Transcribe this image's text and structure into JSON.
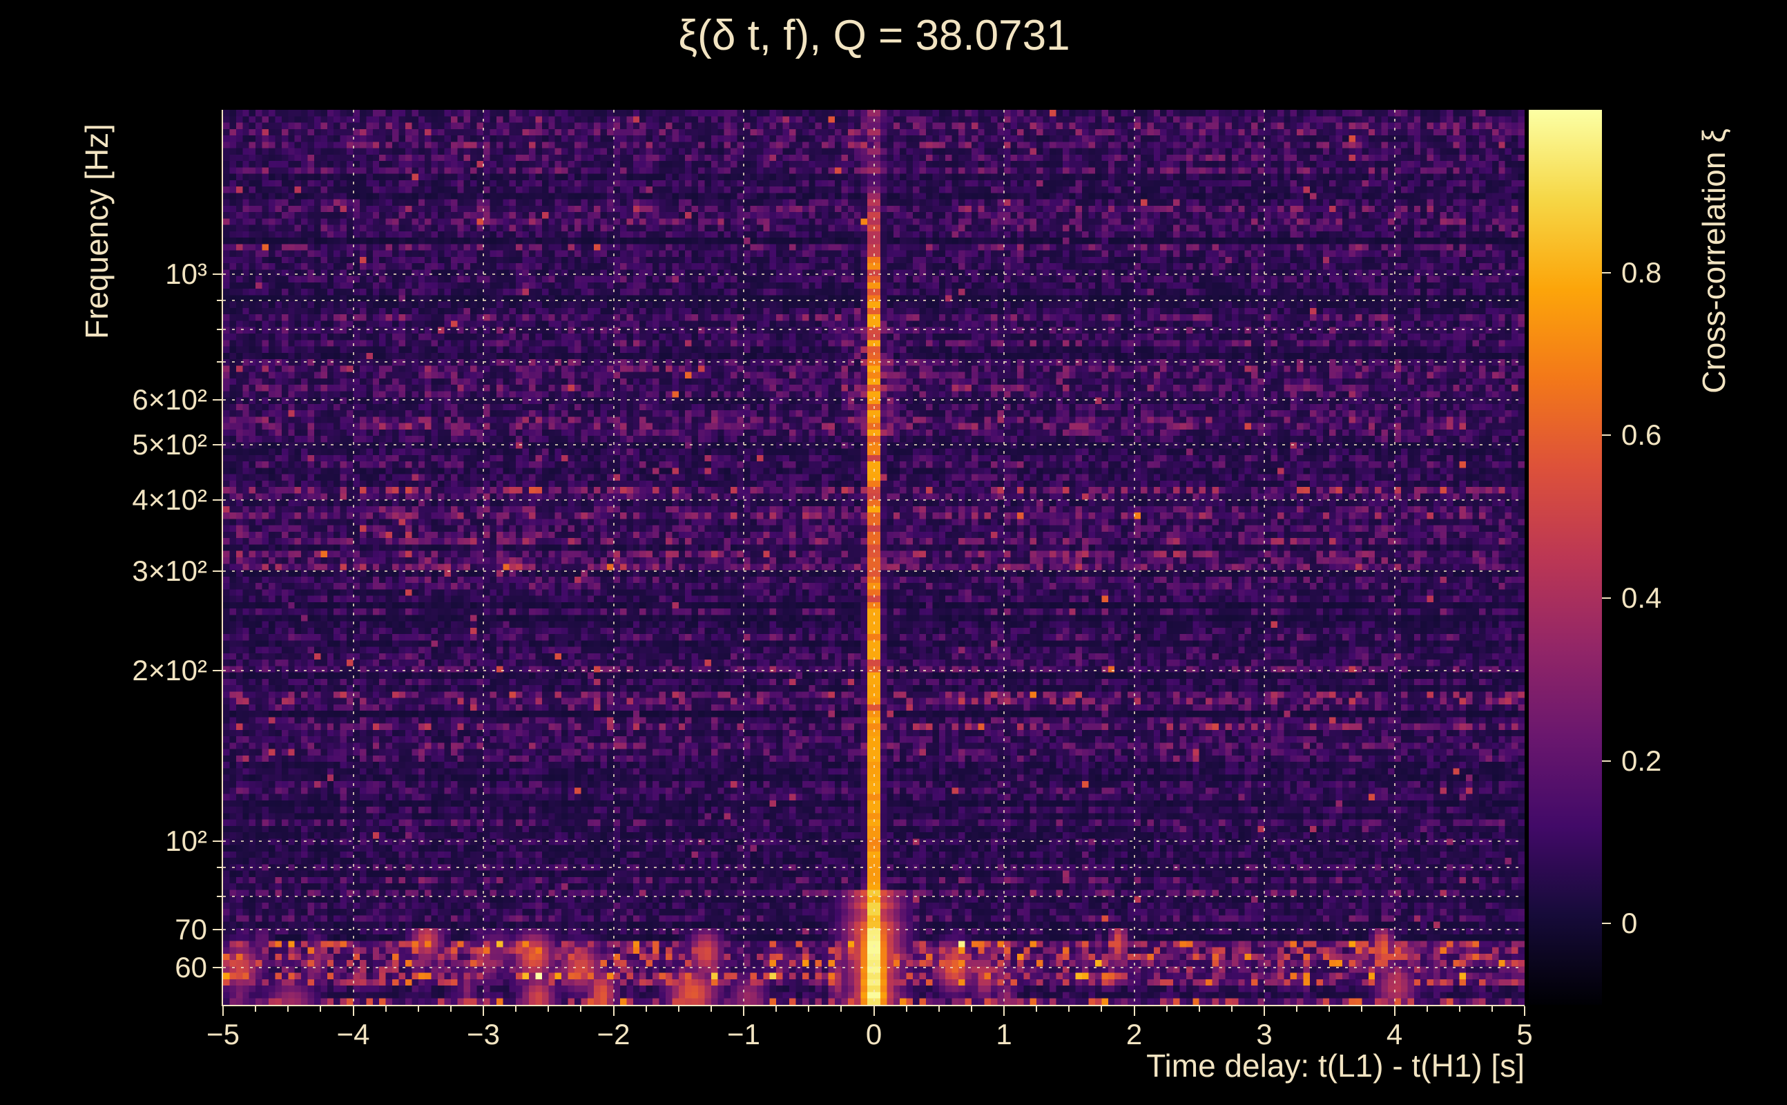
{
  "chart_data": {
    "type": "heatmap",
    "title": "ξ(δ t, f), Q = 38.0731",
    "q_value": 38.0731,
    "x_axis": {
      "label": "Time delay: t(L1) - t(H1) [s]",
      "range": [
        -5,
        5
      ],
      "minor_step": 0.25,
      "ticks": [
        {
          "v": -5,
          "label": "−5"
        },
        {
          "v": -4,
          "label": "−4"
        },
        {
          "v": -3,
          "label": "−3"
        },
        {
          "v": -2,
          "label": "−2"
        },
        {
          "v": -1,
          "label": "−1"
        },
        {
          "v": 0,
          "label": "0"
        },
        {
          "v": 1,
          "label": "1"
        },
        {
          "v": 2,
          "label": "2"
        },
        {
          "v": 3,
          "label": "3"
        },
        {
          "v": 4,
          "label": "4"
        },
        {
          "v": 5,
          "label": "5"
        }
      ]
    },
    "y_axis": {
      "label": "Frequency [Hz]",
      "scale": "log10",
      "range": [
        51.5,
        1950
      ],
      "ticks": [
        {
          "f": 1000,
          "label": "10³"
        },
        {
          "f": 600,
          "label": "6×10²"
        },
        {
          "f": 500,
          "label": "5×10²"
        },
        {
          "f": 400,
          "label": "4×10²"
        },
        {
          "f": 300,
          "label": "3×10²"
        },
        {
          "f": 200,
          "label": "2×10²"
        },
        {
          "f": 100,
          "label": "10²"
        },
        {
          "f": 70,
          "label": "70"
        },
        {
          "f": 60,
          "label": "60"
        }
      ],
      "minor_ticks": [
        900,
        800,
        700,
        90,
        80
      ]
    },
    "colorbar": {
      "label": "Cross-correlation ξ",
      "range": [
        -0.1,
        1.0
      ],
      "ticks": [
        {
          "v": 0,
          "label": "0"
        },
        {
          "v": 0.2,
          "label": "0.2"
        },
        {
          "v": 0.4,
          "label": "0.4"
        },
        {
          "v": 0.6,
          "label": "0.6"
        },
        {
          "v": 0.8,
          "label": "0.8"
        }
      ],
      "colormap": "inferno",
      "stops": [
        "#000004",
        "#160b39",
        "#420a68",
        "#6a176e",
        "#932667",
        "#bc3754",
        "#dd513a",
        "#f37819",
        "#fca50a",
        "#f6d746",
        "#fcffa4"
      ]
    },
    "features": {
      "main_ridge": {
        "time_delay_s": 0.0,
        "freq_span_hz": [
          52,
          1950
        ],
        "peak_correlation": 1.0,
        "core_width_s": 0.08,
        "bright_span_hz": [
          55,
          1000
        ]
      },
      "noise_floor_correlation": 0.05,
      "noisy_bands_hz": [
        [
          52,
          66
        ],
        [
          140,
          210
        ],
        [
          280,
          420
        ],
        [
          520,
          900
        ],
        [
          1400,
          1950
        ]
      ],
      "side_lobe_band_hz": [
        520,
        900
      ],
      "bottom_blobs": {
        "freq_hz": [
          52,
          68
        ],
        "count": 25,
        "max_correlation": 0.65
      }
    },
    "render": {
      "grid_cols": 200,
      "grid_rows": 140,
      "seed": 1337
    }
  }
}
